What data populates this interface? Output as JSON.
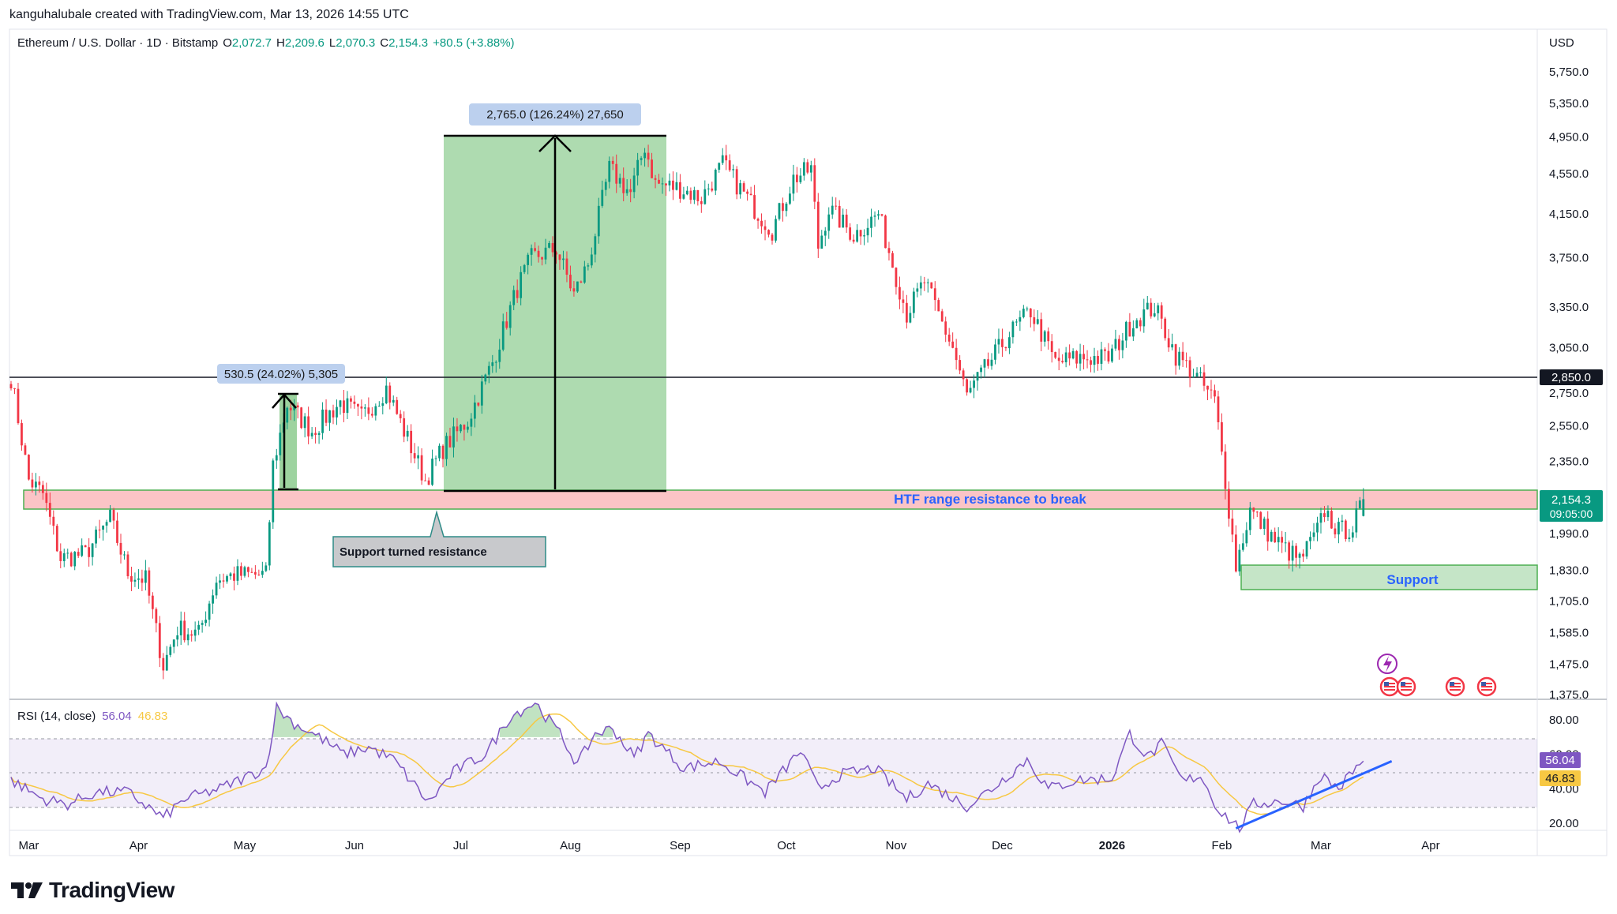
{
  "header": {
    "credit": "kanguhalubale created with TradingView.com, Mar 13, 2026 14:55 UTC"
  },
  "symbol": {
    "name": "Ethereum / U.S. Dollar · 1D · Bitstamp",
    "o_label": "O",
    "o": "2,072.7",
    "h_label": "H",
    "h": "2,209.6",
    "l_label": "L",
    "l": "2,070.3",
    "c_label": "C",
    "c": "2,154.3",
    "change": "+80.5 (+3.88%)"
  },
  "currency": "USD",
  "price_axis": {
    "ticks": [
      {
        "label": "5,750.0",
        "v": 5750
      },
      {
        "label": "5,350.0",
        "v": 5350
      },
      {
        "label": "4,950.0",
        "v": 4950
      },
      {
        "label": "4,550.0",
        "v": 4550
      },
      {
        "label": "4,150.0",
        "v": 4150
      },
      {
        "label": "3,750.0",
        "v": 3750
      },
      {
        "label": "3,350.0",
        "v": 3350
      },
      {
        "label": "3,050.0",
        "v": 3050
      },
      {
        "label": "2,750.0",
        "v": 2750
      },
      {
        "label": "2,550.0",
        "v": 2550
      },
      {
        "label": "2,350.0",
        "v": 2350
      },
      {
        "label": "1,990.0",
        "v": 1990
      },
      {
        "label": "1,830.0",
        "v": 1830
      },
      {
        "label": "1,705.0",
        "v": 1705
      },
      {
        "label": "1,585.0",
        "v": 1585
      },
      {
        "label": "1,475.0",
        "v": 1475
      },
      {
        "label": "1,375.0",
        "v": 1375
      }
    ],
    "hline_label": "2,850.0",
    "last_price": "2,154.3",
    "countdown": "09:05:00"
  },
  "time_axis": [
    "Mar",
    "Apr",
    "May",
    "Jun",
    "Jul",
    "Aug",
    "Sep",
    "Oct",
    "Nov",
    "Dec",
    "2026",
    "Feb",
    "Mar",
    "Apr"
  ],
  "annotations": {
    "measure_small": "530.5 (24.02%) 5,305",
    "measure_big": "2,765.0 (126.24%) 27,650",
    "support_resist": "Support turned resistance",
    "htf_label": "HTF range resistance to break",
    "support_label": "Support"
  },
  "rsi": {
    "label": "RSI (14, close)",
    "value": "56.04",
    "ma": "46.83",
    "ticks": [
      {
        "label": "80.00",
        "v": 80
      },
      {
        "label": "60.00",
        "v": 60
      },
      {
        "label": "40.00",
        "v": 40
      },
      {
        "label": "20.00",
        "v": 20
      }
    ]
  },
  "colors": {
    "up": "#089981",
    "down": "#f23645",
    "rsi": "#7e57c2",
    "rsi_ma": "#f7c843",
    "trend": "#2962ff",
    "zone_green": "#4caf50",
    "zone_red": "#f77c80",
    "hline": "#131722",
    "axis_text": "#131722",
    "blue_text": "#2962ff",
    "label_bg": "#2962ff"
  },
  "chart_data": {
    "type": "candlestick",
    "title": "Ethereum / U.S. Dollar · 1D · Bitstamp",
    "x_range": [
      "2025-02-24",
      "2026-04-30"
    ],
    "y_scale": "log",
    "y_range": [
      1340,
      6000
    ],
    "horizontal_line": 2850,
    "zones": [
      {
        "name": "HTF range resistance to break",
        "low": 2080,
        "high": 2210
      },
      {
        "name": "Support",
        "low": 1735,
        "high": 1845
      }
    ],
    "close_path": [
      [
        "2025-02-24",
        2850
      ],
      [
        "2025-03-01",
        2250
      ],
      [
        "2025-03-05",
        2180
      ],
      [
        "2025-03-10",
        1880
      ],
      [
        "2025-03-17",
        1900
      ],
      [
        "2025-03-24",
        2060
      ],
      [
        "2025-03-29",
        1820
      ],
      [
        "2025-04-03",
        1790
      ],
      [
        "2025-04-08",
        1470
      ],
      [
        "2025-04-12",
        1600
      ],
      [
        "2025-04-18",
        1580
      ],
      [
        "2025-04-23",
        1790
      ],
      [
        "2025-04-28",
        1810
      ],
      [
        "2025-05-07",
        1810
      ],
      [
        "2025-05-09",
        2330
      ],
      [
        "2025-05-13",
        2680
      ],
      [
        "2025-05-20",
        2520
      ],
      [
        "2025-05-28",
        2690
      ],
      [
        "2025-06-03",
        2600
      ],
      [
        "2025-06-10",
        2780
      ],
      [
        "2025-06-15",
        2520
      ],
      [
        "2025-06-21",
        2250
      ],
      [
        "2025-06-26",
        2420
      ],
      [
        "2025-07-03",
        2580
      ],
      [
        "2025-07-10",
        2950
      ],
      [
        "2025-07-17",
        3500
      ],
      [
        "2025-07-21",
        3750
      ],
      [
        "2025-07-28",
        3830
      ],
      [
        "2025-08-02",
        3450
      ],
      [
        "2025-08-06",
        3700
      ],
      [
        "2025-08-12",
        4600
      ],
      [
        "2025-08-18",
        4350
      ],
      [
        "2025-08-22",
        4850
      ],
      [
        "2025-08-25",
        4450
      ],
      [
        "2025-09-01",
        4400
      ],
      [
        "2025-09-07",
        4300
      ],
      [
        "2025-09-13",
        4650
      ],
      [
        "2025-09-22",
        4200
      ],
      [
        "2025-09-27",
        4000
      ],
      [
        "2025-10-03",
        4500
      ],
      [
        "2025-10-08",
        4600
      ],
      [
        "2025-10-10",
        3850
      ],
      [
        "2025-10-13",
        4200
      ],
      [
        "2025-10-20",
        3950
      ],
      [
        "2025-10-27",
        4150
      ],
      [
        "2025-11-04",
        3300
      ],
      [
        "2025-11-09",
        3550
      ],
      [
        "2025-11-17",
        3050
      ],
      [
        "2025-11-21",
        2730
      ],
      [
        "2025-11-26",
        2900
      ],
      [
        "2025-12-03",
        3150
      ],
      [
        "2025-12-09",
        3320
      ],
      [
        "2025-12-16",
        2950
      ],
      [
        "2025-12-23",
        2980
      ],
      [
        "2025-12-31",
        2980
      ],
      [
        "2026-01-07",
        3250
      ],
      [
        "2026-01-13",
        3350
      ],
      [
        "2026-01-19",
        3000
      ],
      [
        "2026-01-24",
        2880
      ],
      [
        "2026-01-30",
        2700
      ],
      [
        "2026-02-02",
        2250
      ],
      [
        "2026-02-05",
        1850
      ],
      [
        "2026-02-09",
        2100
      ],
      [
        "2026-02-16",
        1960
      ],
      [
        "2026-02-23",
        1870
      ],
      [
        "2026-02-28",
        2000
      ],
      [
        "2026-03-02",
        2100
      ],
      [
        "2026-03-06",
        2000
      ],
      [
        "2026-03-10",
        2020
      ],
      [
        "2026-03-13",
        2154.3
      ]
    ],
    "last": {
      "open": 2072.7,
      "high": 2209.6,
      "low": 2070.3,
      "close": 2154.3,
      "change": 80.5,
      "change_pct": 3.88
    },
    "measures": [
      {
        "label": "530.5 (24.02%) 5,305",
        "from": 2210,
        "to": 2740
      },
      {
        "label": "2,765.0 (126.24%) 27,650",
        "from": 2200,
        "to": 4965
      }
    ],
    "rsi": {
      "period": 14,
      "value": 56.04,
      "ma": 46.83,
      "ylim": [
        15,
        90
      ],
      "bands": [
        70,
        30
      ],
      "path": [
        [
          "2025-02-24",
          45
        ],
        [
          "2025-03-05",
          34
        ],
        [
          "2025-03-12",
          31
        ],
        [
          "2025-03-20",
          38
        ],
        [
          "2025-03-29",
          38
        ],
        [
          "2025-04-08",
          23
        ],
        [
          "2025-04-14",
          34
        ],
        [
          "2025-04-24",
          40
        ],
        [
          "2025-05-07",
          52
        ],
        [
          "2025-05-10",
          87
        ],
        [
          "2025-05-15",
          78
        ],
        [
          "2025-05-22",
          70
        ],
        [
          "2025-05-29",
          60
        ],
        [
          "2025-06-05",
          64
        ],
        [
          "2025-06-12",
          57
        ],
        [
          "2025-06-22",
          32
        ],
        [
          "2025-06-29",
          50
        ],
        [
          "2025-07-08",
          60
        ],
        [
          "2025-07-15",
          82
        ],
        [
          "2025-07-22",
          90
        ],
        [
          "2025-07-29",
          72
        ],
        [
          "2025-08-03",
          54
        ],
        [
          "2025-08-08",
          72
        ],
        [
          "2025-08-13",
          75
        ],
        [
          "2025-08-19",
          58
        ],
        [
          "2025-08-23",
          72
        ],
        [
          "2025-09-02",
          52
        ],
        [
          "2025-09-12",
          56
        ],
        [
          "2025-09-25",
          38
        ],
        [
          "2025-10-05",
          62
        ],
        [
          "2025-10-10",
          40
        ],
        [
          "2025-10-16",
          48
        ],
        [
          "2025-10-26",
          52
        ],
        [
          "2025-11-04",
          34
        ],
        [
          "2025-11-10",
          43
        ],
        [
          "2025-11-21",
          30
        ],
        [
          "2025-11-28",
          40
        ],
        [
          "2025-12-08",
          57
        ],
        [
          "2025-12-14",
          40
        ],
        [
          "2025-12-22",
          45
        ],
        [
          "2026-01-01",
          46
        ],
        [
          "2026-01-06",
          72
        ],
        [
          "2026-01-11",
          58
        ],
        [
          "2026-01-15",
          66
        ],
        [
          "2026-01-21",
          44
        ],
        [
          "2026-01-26",
          48
        ],
        [
          "2026-01-31",
          28
        ],
        [
          "2026-02-06",
          17
        ],
        [
          "2026-02-10",
          31
        ],
        [
          "2026-02-18",
          33
        ],
        [
          "2026-02-24",
          30
        ],
        [
          "2026-03-01",
          48
        ],
        [
          "2026-03-06",
          40
        ],
        [
          "2026-03-10",
          50
        ],
        [
          "2026-03-13",
          56
        ]
      ],
      "trendline": [
        [
          "2026-02-05",
          17
        ],
        [
          "2026-03-21",
          56
        ]
      ]
    }
  }
}
